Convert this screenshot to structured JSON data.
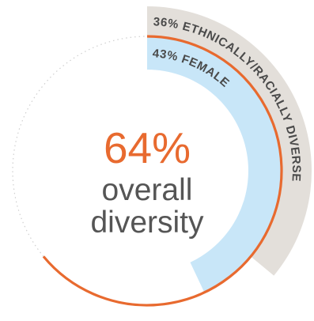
{
  "chart_data": {
    "type": "radial-bar",
    "series": [
      {
        "name": "43% FEMALE",
        "value": 43,
        "color": "#c8e6f8"
      },
      {
        "name": "36% ETHNICALLY/RACIALLY DIVERSE",
        "value": 36,
        "color": "#e3dfda"
      },
      {
        "name": "64% overall diversity",
        "value": 64,
        "color": "#e86a2f"
      }
    ],
    "center": {
      "value": "64%",
      "label_line1": "overall",
      "label_line2": "diversity"
    }
  },
  "colors": {
    "accent": "#e86a2f",
    "female": "#c8e6f8",
    "ethnic": "#e3dfda",
    "label_text": "#4a4a4a",
    "center_label": "#555555",
    "dotted_track": "#cfcfcf"
  }
}
